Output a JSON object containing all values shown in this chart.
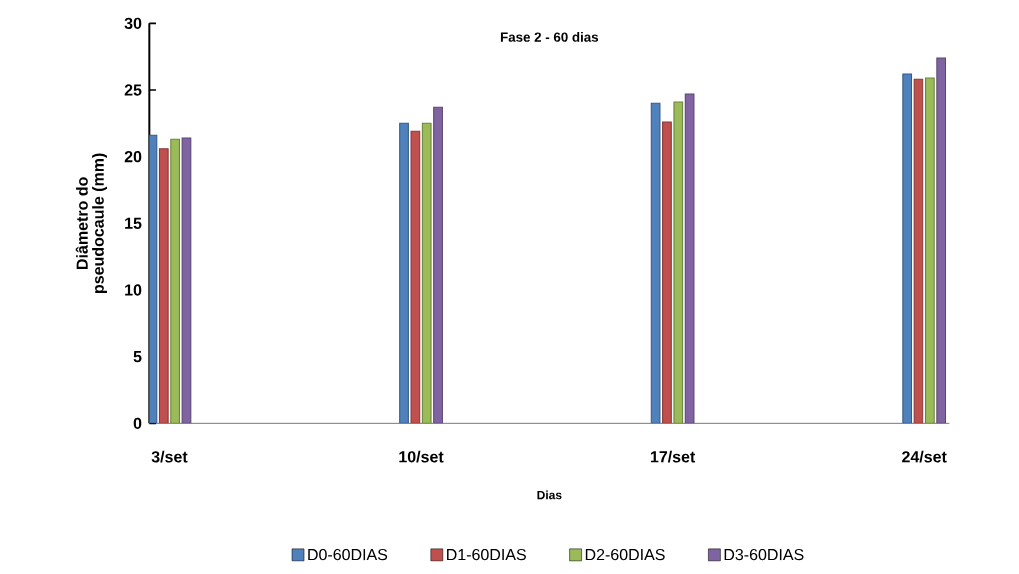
{
  "chart_data": {
    "type": "bar",
    "title": "Fase 2 - 60 dias",
    "xlabel": "Dias",
    "ylabel": "Diâmetro do pseudocaule (mm)",
    "categories": [
      "3/set",
      "10/set",
      "17/set",
      "24/set"
    ],
    "series": [
      {
        "name": "D0-60DIAS",
        "color": "#4f81bd",
        "values": [
          21.6,
          22.5,
          24.0,
          26.2
        ]
      },
      {
        "name": "D1-60DIAS",
        "color": "#c0504d",
        "values": [
          20.6,
          21.9,
          22.6,
          25.8
        ]
      },
      {
        "name": "D2-60DIAS",
        "color": "#9bbb59",
        "values": [
          21.3,
          22.5,
          24.1,
          25.9
        ]
      },
      {
        "name": "D3-60DIAS",
        "color": "#8064a2",
        "values": [
          21.4,
          23.7,
          24.7,
          27.4
        ]
      }
    ],
    "ylim": [
      0,
      30
    ],
    "yticks": [
      0,
      5,
      10,
      15,
      20,
      25,
      30
    ],
    "grid": false,
    "legend": "bottom"
  }
}
